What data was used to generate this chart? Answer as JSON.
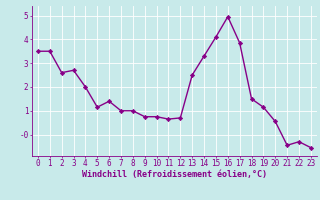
{
  "x": [
    0,
    1,
    2,
    3,
    4,
    5,
    6,
    7,
    8,
    9,
    10,
    11,
    12,
    13,
    14,
    15,
    16,
    17,
    18,
    19,
    20,
    21,
    22,
    23
  ],
  "y": [
    3.5,
    3.5,
    2.6,
    2.7,
    2.0,
    1.15,
    1.4,
    1.0,
    1.0,
    0.75,
    0.75,
    0.65,
    0.7,
    2.5,
    3.3,
    4.1,
    4.95,
    3.85,
    1.5,
    1.15,
    0.55,
    -0.45,
    -0.3,
    -0.55
  ],
  "line_color": "#880088",
  "marker": "D",
  "markersize": 2.2,
  "linewidth": 1.0,
  "bg_color": "#c8eaea",
  "grid_color": "#ffffff",
  "xlabel": "Windchill (Refroidissement éolien,°C)",
  "xlabel_fontsize": 6.0,
  "tick_fontsize": 5.5,
  "ylim": [
    -0.9,
    5.4
  ],
  "xlim": [
    -0.5,
    23.5
  ],
  "yticks": [
    0,
    1,
    2,
    3,
    4,
    5
  ],
  "ytick_labels": [
    "-0",
    "1",
    "2",
    "3",
    "4",
    "5"
  ],
  "xticks": [
    0,
    1,
    2,
    3,
    4,
    5,
    6,
    7,
    8,
    9,
    10,
    11,
    12,
    13,
    14,
    15,
    16,
    17,
    18,
    19,
    20,
    21,
    22,
    23
  ]
}
